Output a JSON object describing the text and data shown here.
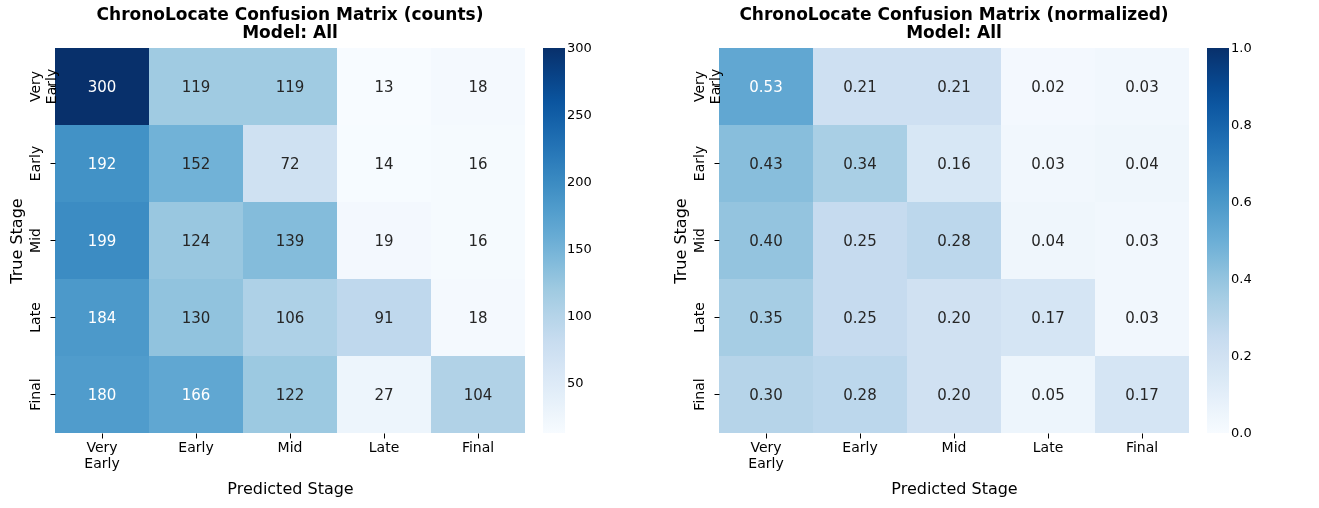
{
  "chart_data": [
    {
      "type": "heatmap",
      "title": "ChronoLocate Confusion Matrix (counts)",
      "subtitle": "Model: All",
      "xlabel": "Predicted Stage",
      "ylabel": "True Stage",
      "categories": [
        "Very Early",
        "Early",
        "Mid",
        "Late",
        "Final"
      ],
      "y_categories": [
        "Very Early",
        "Early",
        "Mid",
        "Late",
        "Final"
      ],
      "cells": [
        [
          300,
          119,
          119,
          13,
          18
        ],
        [
          192,
          152,
          72,
          14,
          16
        ],
        [
          199,
          124,
          139,
          19,
          16
        ],
        [
          184,
          130,
          106,
          91,
          18
        ],
        [
          180,
          166,
          122,
          27,
          104
        ]
      ],
      "clim": [
        13,
        300
      ],
      "cticks": [
        50,
        100,
        150,
        200,
        250,
        300
      ],
      "data_labels": true
    },
    {
      "type": "heatmap",
      "title": "ChronoLocate Confusion Matrix (normalized)",
      "subtitle": "Model: All",
      "xlabel": "Predicted Stage",
      "ylabel": "True Stage",
      "categories": [
        "Very Early",
        "Early",
        "Mid",
        "Late",
        "Final"
      ],
      "y_categories": [
        "Very Early",
        "Early",
        "Mid",
        "Late",
        "Final"
      ],
      "cells": [
        [
          0.53,
          0.21,
          0.21,
          0.02,
          0.03
        ],
        [
          0.43,
          0.34,
          0.16,
          0.03,
          0.04
        ],
        [
          0.4,
          0.25,
          0.28,
          0.04,
          0.03
        ],
        [
          0.35,
          0.25,
          0.2,
          0.17,
          0.03
        ],
        [
          0.3,
          0.28,
          0.2,
          0.05,
          0.17
        ]
      ],
      "cell_labels": [
        [
          "0.53",
          "0.21",
          "0.21",
          "0.02",
          "0.03"
        ],
        [
          "0.43",
          "0.34",
          "0.16",
          "0.03",
          "0.04"
        ],
        [
          "0.40",
          "0.25",
          "0.28",
          "0.04",
          "0.03"
        ],
        [
          "0.35",
          "0.25",
          "0.20",
          "0.17",
          "0.03"
        ],
        [
          "0.30",
          "0.28",
          "0.20",
          "0.05",
          "0.17"
        ]
      ],
      "clim": [
        0,
        1
      ],
      "cticks": [
        {
          "value": 0,
          "label": "0.0"
        },
        0.2,
        0.4,
        0.6,
        0.8,
        {
          "value": 1,
          "label": "1.0"
        }
      ],
      "data_labels": true
    }
  ]
}
